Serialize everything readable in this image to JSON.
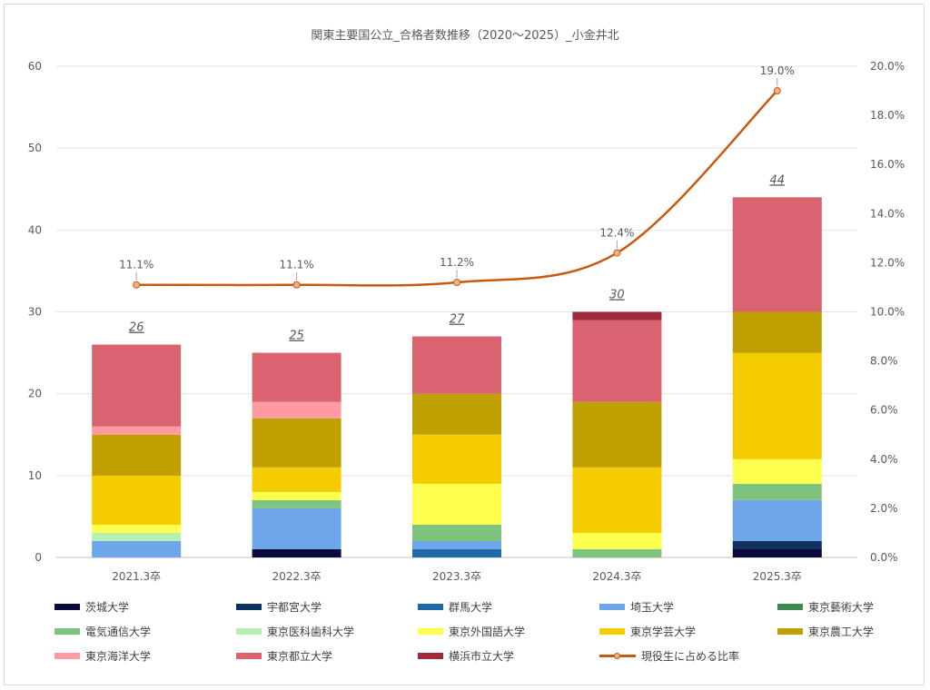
{
  "chart_data": {
    "type": "bar",
    "title": "関東主要国公立_合格者数推移（2020～2025）_小金井北",
    "categories": [
      "2021.3卒",
      "2022.3卒",
      "2023.3卒",
      "2024.3卒",
      "2025.3卒"
    ],
    "y_left_lim": [
      0,
      60
    ],
    "y_left_ticks": [
      "0",
      "10",
      "20",
      "30",
      "40",
      "50",
      "60"
    ],
    "y_right_lim": [
      0,
      20
    ],
    "y_right_ticks": [
      "0.0%",
      "2.0%",
      "4.0%",
      "6.0%",
      "8.0%",
      "10.0%",
      "12.0%",
      "14.0%",
      "16.0%",
      "18.0%",
      "20.0%"
    ],
    "stacked": true,
    "grid": true,
    "legend_position": "bottom",
    "series": [
      {
        "name": "茨城大学",
        "color": "#0a0a3c",
        "values": [
          0,
          1,
          0,
          0,
          1
        ]
      },
      {
        "name": "宇都宮大学",
        "color": "#10305f",
        "values": [
          0,
          0,
          0,
          0,
          1
        ]
      },
      {
        "name": "群馬大学",
        "color": "#1f6aa8",
        "values": [
          0,
          0,
          1,
          0,
          0
        ]
      },
      {
        "name": "埼玉大学",
        "color": "#6ea6ea",
        "values": [
          2,
          5,
          1,
          0,
          5
        ]
      },
      {
        "name": "東京藝術大学",
        "color": "#3e8a52",
        "values": [
          0,
          0,
          0,
          0,
          0
        ]
      },
      {
        "name": "電気通信大学",
        "color": "#7ec47e",
        "values": [
          0,
          1,
          2,
          1,
          2
        ]
      },
      {
        "name": "東京医科歯科大学",
        "color": "#b4f0b4",
        "values": [
          1,
          0,
          0,
          0,
          0
        ]
      },
      {
        "name": "東京外国語大学",
        "color": "#ffff4d",
        "values": [
          1,
          1,
          5,
          2,
          3
        ]
      },
      {
        "name": "東京学芸大学",
        "color": "#f4cc00",
        "values": [
          6,
          3,
          6,
          8,
          13
        ]
      },
      {
        "name": "東京農工大学",
        "color": "#bfa000",
        "values": [
          5,
          6,
          5,
          8,
          5
        ]
      },
      {
        "name": "東京海洋大学",
        "color": "#ff9aa2",
        "values": [
          1,
          2,
          0,
          0,
          0
        ]
      },
      {
        "name": "東京都立大学",
        "color": "#d9636e",
        "values": [
          10,
          6,
          7,
          10,
          14
        ]
      },
      {
        "name": "横浜市立大学",
        "color": "#9e2a3b",
        "values": [
          0,
          0,
          0,
          1,
          0
        ]
      }
    ],
    "totals": [
      "26",
      "25",
      "27",
      "30",
      "44"
    ],
    "line_series": {
      "name": "現役生に占める比率",
      "axis": "right",
      "color": "#c55a11",
      "marker_color": "#f4b183",
      "values": [
        11.1,
        11.1,
        11.2,
        12.4,
        19.0
      ],
      "labels": [
        "11.1%",
        "11.1%",
        "11.2%",
        "12.4%",
        "19.0%"
      ]
    }
  }
}
